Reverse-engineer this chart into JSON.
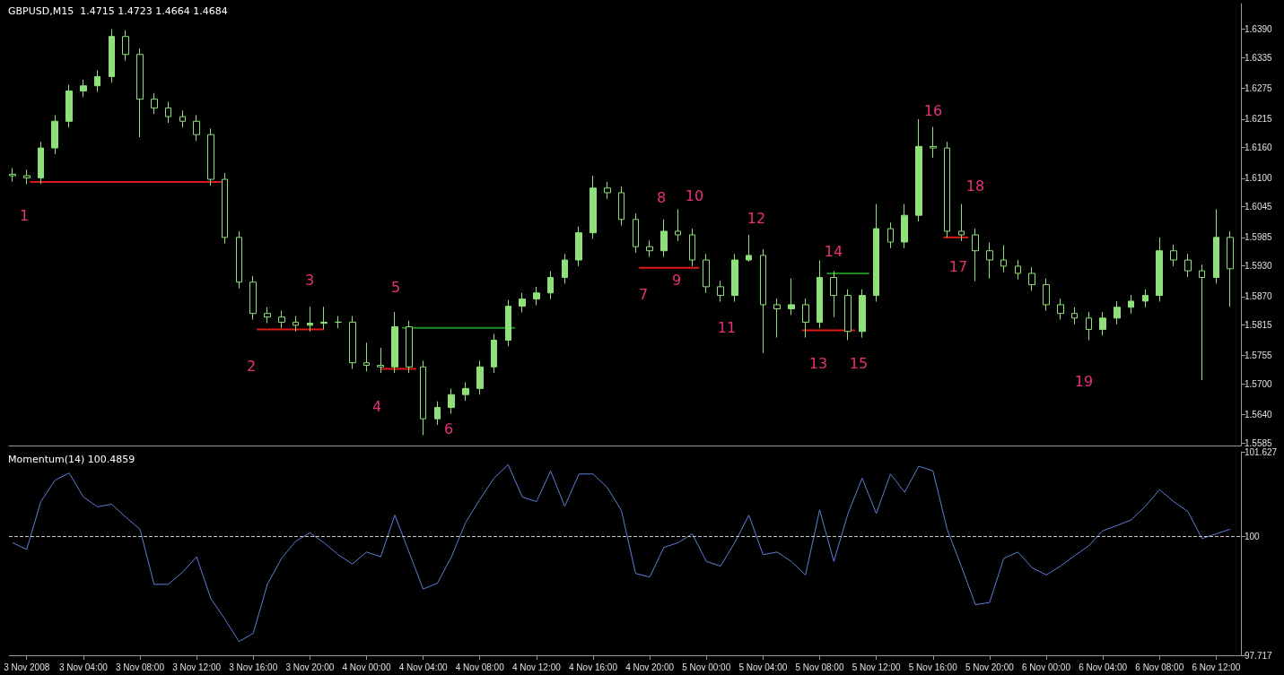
{
  "chart_data": [
    {
      "type": "candlestick",
      "title": "GBPUSD,M15  1.4715 1.4723 1.4664 1.4684",
      "color": "#8fe07a",
      "tick_labels": "y",
      "xlim": [
        "2008-11-02T22:45",
        "2008-11-06T13:45"
      ],
      "ylim": [
        1.558,
        1.644
      ],
      "yticks": [
        {
          "value": 1.639,
          "label": "1.6390"
        },
        {
          "value": 1.6335,
          "label": "1.6335"
        },
        {
          "value": 1.6275,
          "label": "1.6275"
        },
        {
          "value": 1.6215,
          "label": "1.6215"
        },
        {
          "value": 1.616,
          "label": "1.6160"
        },
        {
          "value": 1.61,
          "label": "1.6100"
        },
        {
          "value": 1.6045,
          "label": "1.6045"
        },
        {
          "value": 1.5985,
          "label": "1.5985"
        },
        {
          "value": 1.593,
          "label": "1.5930"
        },
        {
          "value": 1.587,
          "label": "1.5870"
        },
        {
          "value": 1.5815,
          "label": "1.5815"
        },
        {
          "value": 1.5755,
          "label": "1.5755"
        },
        {
          "value": 1.57,
          "label": "1.5700"
        },
        {
          "value": 1.564,
          "label": "1.5640"
        },
        {
          "value": 1.5585,
          "label": "1.5585"
        }
      ],
      "x": [
        "2008-11-02T23:00",
        "2008-11-03T00:00",
        "2008-11-03T01:00",
        "2008-11-03T02:00",
        "2008-11-03T03:00",
        "2008-11-03T04:00",
        "2008-11-03T05:00",
        "2008-11-03T06:00",
        "2008-11-03T07:00",
        "2008-11-03T08:00",
        "2008-11-03T09:00",
        "2008-11-03T10:00",
        "2008-11-03T11:00",
        "2008-11-03T12:00",
        "2008-11-03T13:00",
        "2008-11-03T14:00",
        "2008-11-03T15:00",
        "2008-11-03T16:00",
        "2008-11-03T17:00",
        "2008-11-03T18:00",
        "2008-11-03T19:00",
        "2008-11-03T20:00",
        "2008-11-03T21:00",
        "2008-11-03T22:00",
        "2008-11-03T23:00",
        "2008-11-04T00:00",
        "2008-11-04T01:00",
        "2008-11-04T02:00",
        "2008-11-04T03:00",
        "2008-11-04T04:00",
        "2008-11-04T05:00",
        "2008-11-04T06:00",
        "2008-11-04T07:00",
        "2008-11-04T08:00",
        "2008-11-04T09:00",
        "2008-11-04T10:00",
        "2008-11-04T11:00",
        "2008-11-04T12:00",
        "2008-11-04T13:00",
        "2008-11-04T14:00",
        "2008-11-04T15:00",
        "2008-11-04T16:00",
        "2008-11-04T17:00",
        "2008-11-04T18:00",
        "2008-11-04T19:00",
        "2008-11-04T20:00",
        "2008-11-04T21:00",
        "2008-11-04T22:00",
        "2008-11-04T23:00",
        "2008-11-05T00:00",
        "2008-11-05T01:00",
        "2008-11-05T02:00",
        "2008-11-05T03:00",
        "2008-11-05T04:00",
        "2008-11-05T05:00",
        "2008-11-05T06:00",
        "2008-11-05T07:00",
        "2008-11-05T08:00",
        "2008-11-05T09:00",
        "2008-11-05T10:00",
        "2008-11-05T11:00",
        "2008-11-05T12:00",
        "2008-11-05T13:00",
        "2008-11-05T14:00",
        "2008-11-05T15:00",
        "2008-11-05T16:00",
        "2008-11-05T17:00",
        "2008-11-05T18:00",
        "2008-11-05T19:00",
        "2008-11-05T20:00",
        "2008-11-05T21:00",
        "2008-11-05T22:00",
        "2008-11-05T23:00",
        "2008-11-06T00:00",
        "2008-11-06T01:00",
        "2008-11-06T02:00",
        "2008-11-06T03:00",
        "2008-11-06T04:00",
        "2008-11-06T05:00",
        "2008-11-06T06:00",
        "2008-11-06T07:00",
        "2008-11-06T08:00",
        "2008-11-06T09:00",
        "2008-11-06T10:00",
        "2008-11-06T11:00",
        "2008-11-06T12:00",
        "2008-11-06T13:00"
      ],
      "ohlc": [
        [
          1.6108,
          1.612,
          1.6093,
          1.6105
        ],
        [
          1.6105,
          1.6117,
          1.6089,
          1.6101
        ],
        [
          1.6101,
          1.6171,
          1.6089,
          1.6159
        ],
        [
          1.6159,
          1.6223,
          1.6147,
          1.6211
        ],
        [
          1.6211,
          1.6282,
          1.6199,
          1.627
        ],
        [
          1.627,
          1.6292,
          1.6258,
          1.628
        ],
        [
          1.628,
          1.631,
          1.6268,
          1.6298
        ],
        [
          1.6298,
          1.639,
          1.6286,
          1.6376
        ],
        [
          1.6376,
          1.6388,
          1.6329,
          1.6341
        ],
        [
          1.6341,
          1.6353,
          1.618,
          1.6254
        ],
        [
          1.6254,
          1.6266,
          1.6225,
          1.6237
        ],
        [
          1.6237,
          1.6249,
          1.6208,
          1.622
        ],
        [
          1.622,
          1.6232,
          1.6199,
          1.6211
        ],
        [
          1.6211,
          1.6223,
          1.6173,
          1.6185
        ],
        [
          1.6185,
          1.6197,
          1.6086,
          1.6098
        ],
        [
          1.6098,
          1.611,
          1.5973,
          1.5985
        ],
        [
          1.5985,
          1.5997,
          1.5886,
          1.5898
        ],
        [
          1.5898,
          1.591,
          1.5825,
          1.5837
        ],
        [
          1.5837,
          1.5849,
          1.5818,
          1.583
        ],
        [
          1.583,
          1.5842,
          1.5808,
          1.582
        ],
        [
          1.582,
          1.5832,
          1.5802,
          1.5814
        ],
        [
          1.5814,
          1.585,
          1.5802,
          1.5818
        ],
        [
          1.5818,
          1.585,
          1.5806,
          1.582
        ],
        [
          1.582,
          1.5832,
          1.5808,
          1.582
        ],
        [
          1.582,
          1.5832,
          1.5729,
          1.5741
        ],
        [
          1.5741,
          1.578,
          1.5724,
          1.5736
        ],
        [
          1.5736,
          1.577,
          1.5721,
          1.5733
        ],
        [
          1.5733,
          1.584,
          1.5721,
          1.5811
        ],
        [
          1.5811,
          1.5823,
          1.5721,
          1.5733
        ],
        [
          1.5733,
          1.5745,
          1.56,
          1.5632
        ],
        [
          1.5632,
          1.5666,
          1.562,
          1.5654
        ],
        [
          1.5654,
          1.5691,
          1.5642,
          1.5679
        ],
        [
          1.5679,
          1.5703,
          1.5667,
          1.5691
        ],
        [
          1.5691,
          1.5745,
          1.5679,
          1.5733
        ],
        [
          1.5733,
          1.5797,
          1.5721,
          1.5785
        ],
        [
          1.5785,
          1.5863,
          1.5773,
          1.5851
        ],
        [
          1.5851,
          1.5877,
          1.5839,
          1.5865
        ],
        [
          1.5865,
          1.5889,
          1.5853,
          1.5877
        ],
        [
          1.5877,
          1.5919,
          1.5865,
          1.5907
        ],
        [
          1.5907,
          1.5953,
          1.5895,
          1.5941
        ],
        [
          1.5941,
          1.6006,
          1.5929,
          1.5994
        ],
        [
          1.5994,
          1.6105,
          1.5982,
          1.6081
        ],
        [
          1.6081,
          1.6093,
          1.606,
          1.6072
        ],
        [
          1.6072,
          1.6084,
          1.6008,
          1.602
        ],
        [
          1.602,
          1.6032,
          1.5955,
          1.5967
        ],
        [
          1.5967,
          1.5979,
          1.5947,
          1.5959
        ],
        [
          1.5959,
          1.602,
          1.5947,
          1.5997
        ],
        [
          1.5997,
          1.604,
          1.5978,
          1.599
        ],
        [
          1.599,
          1.6002,
          1.5929,
          1.5941
        ],
        [
          1.5941,
          1.5953,
          1.5877,
          1.5889
        ],
        [
          1.5889,
          1.5901,
          1.586,
          1.5872
        ],
        [
          1.5872,
          1.5953,
          1.586,
          1.5941
        ],
        [
          1.5941,
          1.599,
          1.5938,
          1.595
        ],
        [
          1.595,
          1.5962,
          1.576,
          1.5854
        ],
        [
          1.5854,
          1.5866,
          1.579,
          1.5846
        ],
        [
          1.5846,
          1.5905,
          1.5834,
          1.5854
        ],
        [
          1.5854,
          1.5866,
          1.579,
          1.582
        ],
        [
          1.582,
          1.594,
          1.5808,
          1.5907
        ],
        [
          1.5907,
          1.5919,
          1.583,
          1.5872
        ],
        [
          1.5872,
          1.5884,
          1.5785,
          1.5802
        ],
        [
          1.5802,
          1.5884,
          1.579,
          1.5872
        ],
        [
          1.5872,
          1.605,
          1.586,
          1.6002
        ],
        [
          1.6002,
          1.6014,
          1.5964,
          1.5976
        ],
        [
          1.5976,
          1.605,
          1.5964,
          1.6028
        ],
        [
          1.6028,
          1.6215,
          1.6016,
          1.6162
        ],
        [
          1.6162,
          1.62,
          1.614,
          1.6159
        ],
        [
          1.6159,
          1.6171,
          1.5985,
          1.5997
        ],
        [
          1.5997,
          1.605,
          1.5978,
          1.599
        ],
        [
          1.599,
          1.6002,
          1.59,
          1.5959
        ],
        [
          1.5959,
          1.5975,
          1.5905,
          1.5941
        ],
        [
          1.5941,
          1.597,
          1.5917,
          1.5929
        ],
        [
          1.5929,
          1.5941,
          1.5903,
          1.5915
        ],
        [
          1.5915,
          1.5927,
          1.5881,
          1.5893
        ],
        [
          1.5893,
          1.5905,
          1.5842,
          1.5854
        ],
        [
          1.5854,
          1.5866,
          1.5825,
          1.5837
        ],
        [
          1.5837,
          1.5849,
          1.5816,
          1.5828
        ],
        [
          1.5828,
          1.584,
          1.5785,
          1.5806
        ],
        [
          1.5806,
          1.584,
          1.5794,
          1.5828
        ],
        [
          1.5828,
          1.5861,
          1.5816,
          1.5849
        ],
        [
          1.5849,
          1.5873,
          1.5837,
          1.5861
        ],
        [
          1.5861,
          1.5884,
          1.5849,
          1.5872
        ],
        [
          1.5872,
          1.5985,
          1.586,
          1.5959
        ],
        [
          1.5959,
          1.5971,
          1.5929,
          1.5941
        ],
        [
          1.5941,
          1.5953,
          1.5908,
          1.592
        ],
        [
          1.592,
          1.5932,
          1.5707,
          1.5907
        ],
        [
          1.5907,
          1.604,
          1.5895,
          1.5985
        ],
        [
          1.5985,
          1.5997,
          1.585,
          1.5924
        ]
      ],
      "series": [
        {
          "type": "line",
          "color": "#e01818",
          "x": [
            "2008-11-03T00:15",
            "2008-11-03T13:45"
          ],
          "values": [
            1.6093,
            1.6093
          ]
        },
        {
          "type": "line",
          "color": "#e01818",
          "x": [
            "2008-11-03T16:15",
            "2008-11-03T21:00"
          ],
          "values": [
            1.5806,
            1.5806
          ]
        },
        {
          "type": "line",
          "color": "#e01818",
          "x": [
            "2008-11-04T01:00",
            "2008-11-04T03:30"
          ],
          "values": [
            1.5729,
            1.5729
          ]
        },
        {
          "type": "line",
          "color": "#1f8a1f",
          "x": [
            "2008-11-04T02:30",
            "2008-11-04T10:30"
          ],
          "values": [
            1.5809,
            1.5809
          ]
        },
        {
          "type": "line",
          "color": "#e01818",
          "x": [
            "2008-11-04T19:15",
            "2008-11-04T23:30"
          ],
          "values": [
            1.5926,
            1.5926
          ]
        },
        {
          "type": "line",
          "color": "#e01818",
          "x": [
            "2008-11-05T06:45",
            "2008-11-05T10:30"
          ],
          "values": [
            1.5804,
            1.5804
          ]
        },
        {
          "type": "line",
          "color": "#1f8a1f",
          "x": [
            "2008-11-05T08:30",
            "2008-11-05T11:30"
          ],
          "values": [
            1.5915,
            1.5915
          ]
        },
        {
          "type": "line",
          "color": "#e01818",
          "x": [
            "2008-11-05T16:45",
            "2008-11-05T18:30"
          ],
          "values": [
            1.5985,
            1.5985
          ]
        }
      ],
      "annotations": [
        "1",
        "2",
        "3",
        "4",
        "5",
        "6",
        "7",
        "8",
        "9",
        "10",
        "11",
        "12",
        "13",
        "14",
        "15",
        "16",
        "17",
        "18",
        "19"
      ]
    },
    {
      "type": "line",
      "title": "Momentum(14) 100.4859",
      "color": "#5b7fd6",
      "marker": "none",
      "xlim": [
        "2008-11-02T22:45",
        "2008-11-06T13:45"
      ],
      "ylim": [
        97.717,
        101.627
      ],
      "yticks": [
        97.717,
        100,
        101.627
      ],
      "xticks": [
        {
          "value": "2008-11-03T00:00",
          "label": "3 Nov 2008"
        },
        {
          "value": "2008-11-03T04:00",
          "label": "3 Nov 04:00"
        },
        {
          "value": "2008-11-03T08:00",
          "label": "3 Nov 08:00"
        },
        {
          "value": "2008-11-03T12:00",
          "label": "3 Nov 12:00"
        },
        {
          "value": "2008-11-03T16:00",
          "label": "3 Nov 16:00"
        },
        {
          "value": "2008-11-03T20:00",
          "label": "3 Nov 20:00"
        },
        {
          "value": "2008-11-04T00:00",
          "label": "4 Nov 00:00"
        },
        {
          "value": "2008-11-04T04:00",
          "label": "4 Nov 04:00"
        },
        {
          "value": "2008-11-04T08:00",
          "label": "4 Nov 08:00"
        },
        {
          "value": "2008-11-04T12:00",
          "label": "4 Nov 12:00"
        },
        {
          "value": "2008-11-04T16:00",
          "label": "4 Nov 16:00"
        },
        {
          "value": "2008-11-04T20:00",
          "label": "4 Nov 20:00"
        },
        {
          "value": "2008-11-05T00:00",
          "label": "5 Nov 00:00"
        },
        {
          "value": "2008-11-05T04:00",
          "label": "5 Nov 04:00"
        },
        {
          "value": "2008-11-05T08:00",
          "label": "5 Nov 08:00"
        },
        {
          "value": "2008-11-05T12:00",
          "label": "5 Nov 12:00"
        },
        {
          "value": "2008-11-05T16:00",
          "label": "5 Nov 16:00"
        },
        {
          "value": "2008-11-05T20:00",
          "label": "5 Nov 20:00"
        },
        {
          "value": "2008-11-06T00:00",
          "label": "6 Nov 00:00"
        },
        {
          "value": "2008-11-06T04:00",
          "label": "6 Nov 04:00"
        },
        {
          "value": "2008-11-06T08:00",
          "label": "6 Nov 08:00"
        },
        {
          "value": "2008-11-06T12:00",
          "label": "6 Nov 12:00"
        }
      ],
      "x": [
        "2008-11-02T23:00",
        "2008-11-03T00:00",
        "2008-11-03T01:00",
        "2008-11-03T02:00",
        "2008-11-03T03:00",
        "2008-11-03T04:00",
        "2008-11-03T05:00",
        "2008-11-03T06:00",
        "2008-11-03T07:00",
        "2008-11-03T08:00",
        "2008-11-03T09:00",
        "2008-11-03T10:00",
        "2008-11-03T11:00",
        "2008-11-03T12:00",
        "2008-11-03T13:00",
        "2008-11-03T14:00",
        "2008-11-03T15:00",
        "2008-11-03T16:00",
        "2008-11-03T17:00",
        "2008-11-03T18:00",
        "2008-11-03T19:00",
        "2008-11-03T20:00",
        "2008-11-03T21:00",
        "2008-11-03T22:00",
        "2008-11-03T23:00",
        "2008-11-04T00:00",
        "2008-11-04T01:00",
        "2008-11-04T02:00",
        "2008-11-04T03:00",
        "2008-11-04T04:00",
        "2008-11-04T05:00",
        "2008-11-04T06:00",
        "2008-11-04T07:00",
        "2008-11-04T08:00",
        "2008-11-04T09:00",
        "2008-11-04T10:00",
        "2008-11-04T11:00",
        "2008-11-04T12:00",
        "2008-11-04T13:00",
        "2008-11-04T14:00",
        "2008-11-04T15:00",
        "2008-11-04T16:00",
        "2008-11-04T17:00",
        "2008-11-04T18:00",
        "2008-11-04T19:00",
        "2008-11-04T20:00",
        "2008-11-04T21:00",
        "2008-11-04T22:00",
        "2008-11-04T23:00",
        "2008-11-05T00:00",
        "2008-11-05T01:00",
        "2008-11-05T02:00",
        "2008-11-05T03:00",
        "2008-11-05T04:00",
        "2008-11-05T05:00",
        "2008-11-05T06:00",
        "2008-11-05T07:00",
        "2008-11-05T08:00",
        "2008-11-05T09:00",
        "2008-11-05T10:00",
        "2008-11-05T11:00",
        "2008-11-05T12:00",
        "2008-11-05T13:00",
        "2008-11-05T14:00",
        "2008-11-05T15:00",
        "2008-11-05T16:00",
        "2008-11-05T17:00",
        "2008-11-05T18:00",
        "2008-11-05T19:00",
        "2008-11-05T20:00",
        "2008-11-05T21:00",
        "2008-11-05T22:00",
        "2008-11-05T23:00",
        "2008-11-06T00:00",
        "2008-11-06T01:00",
        "2008-11-06T02:00",
        "2008-11-06T03:00",
        "2008-11-06T04:00",
        "2008-11-06T05:00",
        "2008-11-06T06:00",
        "2008-11-06T07:00",
        "2008-11-06T08:00",
        "2008-11-06T09:00",
        "2008-11-06T10:00",
        "2008-11-06T11:00",
        "2008-11-06T12:00",
        "2008-11-06T13:00"
      ],
      "values": [
        99.88,
        99.75,
        100.67,
        101.08,
        101.22,
        100.76,
        100.57,
        100.62,
        100.37,
        100.14,
        99.08,
        99.08,
        99.31,
        99.61,
        98.81,
        98.41,
        97.98,
        98.14,
        99.08,
        99.58,
        99.91,
        100.07,
        99.88,
        99.65,
        99.47,
        99.7,
        99.61,
        100.41,
        99.7,
        98.99,
        99.1,
        99.61,
        100.27,
        100.71,
        101.12,
        101.38,
        100.76,
        100.67,
        101.26,
        100.58,
        101.2,
        101.2,
        100.94,
        100.5,
        99.29,
        99.22,
        99.79,
        99.88,
        100.05,
        99.52,
        99.43,
        99.88,
        100.41,
        99.65,
        99.7,
        99.52,
        99.26,
        100.51,
        99.52,
        100.44,
        101.12,
        100.44,
        101.2,
        100.85,
        101.35,
        101.26,
        100.14,
        99.43,
        98.69,
        98.73,
        99.58,
        99.7,
        99.4,
        99.26,
        99.43,
        99.63,
        99.82,
        100.11,
        100.21,
        100.32,
        100.58,
        100.9,
        100.67,
        100.48,
        99.96,
        100.05,
        100.14
      ],
      "ref_lines": [
        {
          "axis": "y",
          "value": 100,
          "color": "#c8c8c8",
          "line_style": "dashed"
        }
      ]
    }
  ]
}
